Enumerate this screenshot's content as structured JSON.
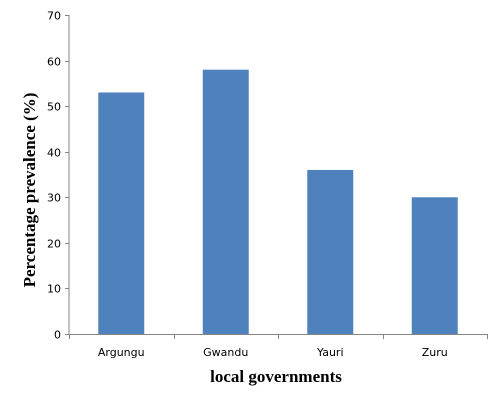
{
  "chart_data": {
    "type": "bar",
    "categories": [
      "Argungu",
      "Gwandu",
      "Yauri",
      "Zuru"
    ],
    "values": [
      53,
      58,
      36,
      30
    ],
    "title": "",
    "xlabel": "local governments",
    "ylabel": "Percentage  prevalence (%)",
    "ylim": [
      0,
      70
    ],
    "yticks": [
      0,
      10,
      20,
      30,
      40,
      50,
      60,
      70
    ],
    "bar_color": "#4F81BD",
    "grid": false,
    "legend": "none"
  }
}
